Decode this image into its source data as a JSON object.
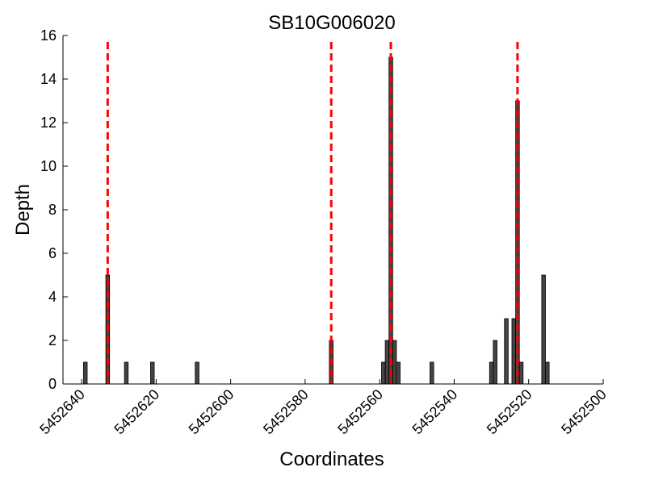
{
  "chart_data": {
    "type": "bar",
    "title": "SB10G006020",
    "xlabel": "Coordinates",
    "ylabel": "Depth",
    "xlim": [
      5452645,
      5452500
    ],
    "ylim": [
      0,
      16
    ],
    "xticks": [
      5452640,
      5452620,
      5452600,
      5452580,
      5452560,
      5452540,
      5452520,
      5452500
    ],
    "xtick_labels": [
      "5452640",
      "5452620",
      "5452600",
      "5452580",
      "5452560",
      "5452540",
      "5452520",
      "5452500"
    ],
    "yticks": [
      0,
      2,
      4,
      6,
      8,
      10,
      12,
      14,
      16
    ],
    "ytick_labels": [
      "0",
      "2",
      "4",
      "6",
      "8",
      "10",
      "12",
      "14",
      "16"
    ],
    "grid": false,
    "bar_color": "#444444",
    "reference_line_color": "#ff0000",
    "bars": [
      {
        "x": 5452639,
        "depth": 1
      },
      {
        "x": 5452633,
        "depth": 5
      },
      {
        "x": 5452628,
        "depth": 1
      },
      {
        "x": 5452621,
        "depth": 1
      },
      {
        "x": 5452609,
        "depth": 1
      },
      {
        "x": 5452573,
        "depth": 2
      },
      {
        "x": 5452559,
        "depth": 1
      },
      {
        "x": 5452558,
        "depth": 2
      },
      {
        "x": 5452557,
        "depth": 15
      },
      {
        "x": 5452556,
        "depth": 2
      },
      {
        "x": 5452555,
        "depth": 1
      },
      {
        "x": 5452546,
        "depth": 1
      },
      {
        "x": 5452530,
        "depth": 1
      },
      {
        "x": 5452529,
        "depth": 2
      },
      {
        "x": 5452526,
        "depth": 3
      },
      {
        "x": 5452524,
        "depth": 3
      },
      {
        "x": 5452523,
        "depth": 13
      },
      {
        "x": 5452522,
        "depth": 1
      },
      {
        "x": 5452516,
        "depth": 5
      },
      {
        "x": 5452515,
        "depth": 1
      }
    ],
    "reference_lines": [
      5452633,
      5452573,
      5452557,
      5452523
    ]
  }
}
